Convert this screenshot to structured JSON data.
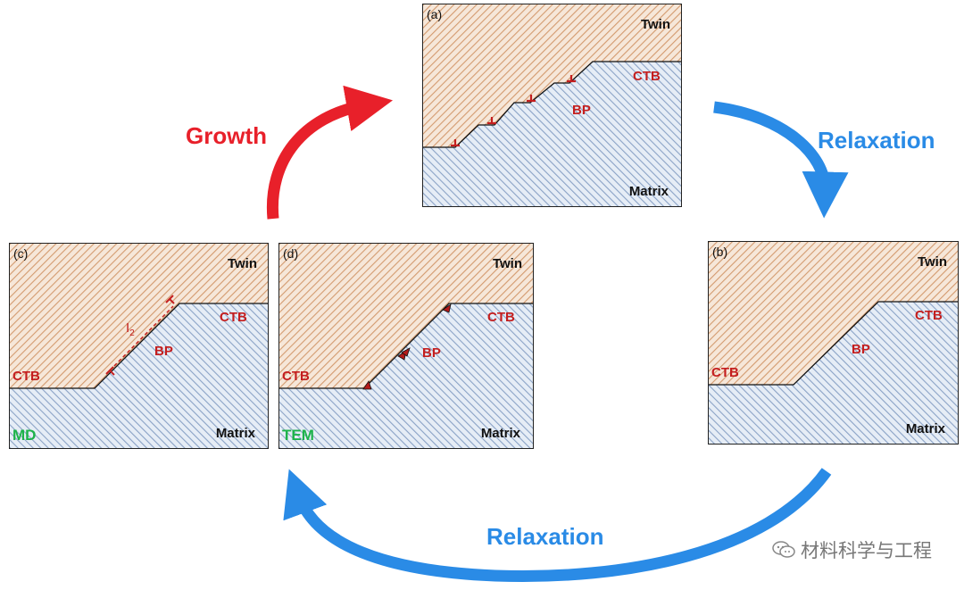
{
  "labels": {
    "twin": "Twin",
    "matrix": "Matrix",
    "ctb": "CTB",
    "bp": "BP",
    "growth": "Growth",
    "relaxation": "Relaxation",
    "i2_main": "I",
    "i2_sub": "2"
  },
  "panels": {
    "a": {
      "tag": "(a)"
    },
    "b": {
      "tag": "(b)"
    },
    "c": {
      "tag": "(c)",
      "method": "MD"
    },
    "d": {
      "tag": "(d)",
      "method": "TEM"
    }
  },
  "watermark": "材料科学与工程",
  "colors": {
    "growth_arrow": "#e8202a",
    "relax_arrow": "#2a8be6",
    "twin_hatch": "#d39a6e",
    "matrix_hatch": "#8aa2c6",
    "defect_red": "#c41e1e",
    "method_green": "#1db34a"
  },
  "icons": [
    "growth-arrow",
    "relaxation-arrow-right",
    "relaxation-arrow-bottom",
    "dislocation-symbol",
    "wechat-icon"
  ]
}
